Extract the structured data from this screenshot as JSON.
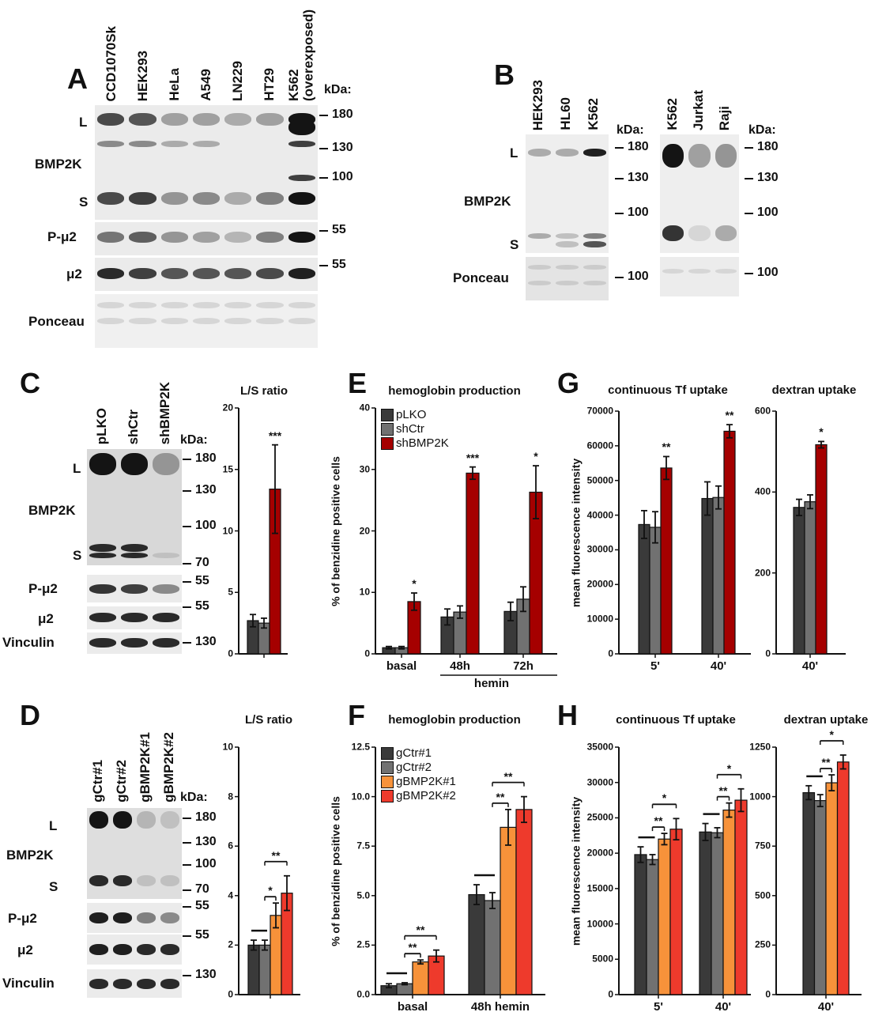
{
  "panels": {
    "A": "A",
    "B": "B",
    "C": "C",
    "D": "D",
    "E": "E",
    "F": "F",
    "G": "G",
    "H": "H"
  },
  "blotA": {
    "lanes": [
      "CCD1070Sk",
      "HEK293",
      "HeLa",
      "A549",
      "LN229",
      "HT29",
      "K562 (overexposed)"
    ],
    "rows": {
      "L": "L",
      "bmp2k": "BMP2K",
      "S": "S",
      "pmu2": "P-μ2",
      "mu2": "μ2",
      "ponceau": "Ponceau"
    },
    "kda_label": "kDa:",
    "markers": [
      "180",
      "130",
      "100",
      "55",
      "55"
    ]
  },
  "blotB": {
    "lanes_left": [
      "HEK293",
      "HL60",
      "K562"
    ],
    "lanes_right": [
      "K562",
      "Jurkat",
      "Raji"
    ],
    "rows": {
      "L": "L",
      "bmp2k": "BMP2K",
      "S": "S",
      "ponceau": "Ponceau"
    },
    "kda_label": "kDa:",
    "markers_left": [
      "180",
      "130",
      "100",
      "100"
    ],
    "markers_right": [
      "180",
      "130",
      "100",
      "100"
    ]
  },
  "blotC": {
    "lanes": [
      "pLKO",
      "shCtr",
      "shBMP2K"
    ],
    "rows": {
      "L": "L",
      "bmp2k": "BMP2K",
      "S": "S",
      "pmu2": "P-μ2",
      "mu2": "μ2",
      "vinculin": "Vinculin"
    },
    "kda_label": "kDa:",
    "markers": [
      "180",
      "130",
      "100",
      "70",
      "55",
      "55",
      "130"
    ]
  },
  "blotD": {
    "lanes": [
      "gCtr#1",
      "gCtr#2",
      "gBMP2K#1",
      "gBMP2K#2"
    ],
    "rows": {
      "L": "L",
      "bmp2k": "BMP2K",
      "S": "S",
      "pmu2": "P-μ2",
      "mu2": "μ2",
      "vinculin": "Vinculin"
    },
    "kda_label": "kDa:",
    "markers": [
      "180",
      "130",
      "100",
      "70",
      "55",
      "55",
      "130"
    ]
  },
  "colors": {
    "dark": "#3a3a3a",
    "gray": "#717171",
    "darkred": "#a50000",
    "orange": "#f7923a",
    "red": "#ee3a2c"
  },
  "chart_data": [
    {
      "id": "C",
      "type": "bar",
      "title": "L/S ratio",
      "ylabel": "",
      "ylim": [
        0,
        20
      ],
      "yticks": [
        "0",
        "5",
        "10",
        "15",
        "20"
      ],
      "categories": [
        ""
      ],
      "series": [
        {
          "values": [
            2.7
          ],
          "errors": [
            0.5
          ],
          "color": "#3a3a3a"
        },
        {
          "values": [
            2.5
          ],
          "errors": [
            0.4
          ],
          "color": "#717171"
        },
        {
          "values": [
            13.4
          ],
          "errors": [
            3.6
          ],
          "color": "#a50000"
        }
      ],
      "significance": [
        {
          "group": 0,
          "bar": 2,
          "label": "***"
        }
      ]
    },
    {
      "id": "E",
      "type": "bar",
      "title": "hemoglobin production",
      "ylabel": "% of benzidine positive cells",
      "ylim": [
        0,
        40
      ],
      "yticks": [
        "0",
        "10",
        "20",
        "30",
        "40"
      ],
      "categories": [
        "basal",
        "48h",
        "72h"
      ],
      "group_label": "hemin",
      "legend": "top-left",
      "series": [
        {
          "name": "pLKO",
          "values": [
            1.0,
            6.0,
            6.9
          ],
          "errors": [
            0.2,
            1.3,
            1.5
          ],
          "color": "#3a3a3a"
        },
        {
          "name": "shCtr",
          "values": [
            1.0,
            6.8,
            8.9
          ],
          "errors": [
            0.2,
            1.0,
            2.0
          ],
          "color": "#717171"
        },
        {
          "name": "shBMP2K",
          "values": [
            8.5,
            29.4,
            26.3
          ],
          "errors": [
            1.4,
            1.0,
            4.3
          ],
          "color": "#a50000"
        }
      ],
      "significance": [
        {
          "group": 0,
          "bar": 2,
          "label": "*"
        },
        {
          "group": 1,
          "bar": 2,
          "label": "***"
        },
        {
          "group": 2,
          "bar": 2,
          "label": "*"
        }
      ]
    },
    {
      "id": "G1",
      "type": "bar",
      "title": "continuous Tf uptake",
      "ylabel": "mean fluorescence intensity",
      "ylim": [
        0,
        70000
      ],
      "yticks": [
        "0",
        "10000",
        "20000",
        "30000",
        "40000",
        "50000",
        "60000",
        "70000"
      ],
      "categories": [
        "5'",
        "40'"
      ],
      "series": [
        {
          "values": [
            37300,
            44800
          ],
          "errors": [
            4000,
            4800
          ],
          "color": "#3a3a3a"
        },
        {
          "values": [
            36500,
            45100
          ],
          "errors": [
            4500,
            3300
          ],
          "color": "#717171"
        },
        {
          "values": [
            53600,
            64200
          ],
          "errors": [
            3300,
            1900
          ],
          "color": "#a50000"
        }
      ],
      "significance": [
        {
          "group": 0,
          "bar": 2,
          "label": "**"
        },
        {
          "group": 1,
          "bar": 2,
          "label": "**"
        }
      ]
    },
    {
      "id": "G2",
      "type": "bar",
      "title": "dextran uptake",
      "ylabel": "",
      "ylim": [
        0,
        600
      ],
      "yticks": [
        "0",
        "200",
        "400",
        "600"
      ],
      "categories": [
        "40'"
      ],
      "series": [
        {
          "values": [
            362
          ],
          "errors": [
            20
          ],
          "color": "#3a3a3a"
        },
        {
          "values": [
            376
          ],
          "errors": [
            17
          ],
          "color": "#717171"
        },
        {
          "values": [
            517
          ],
          "errors": [
            8
          ],
          "color": "#a50000"
        }
      ],
      "significance": [
        {
          "group": 0,
          "bar": 2,
          "label": "*"
        }
      ]
    },
    {
      "id": "D",
      "type": "bar",
      "title": "L/S ratio",
      "ylabel": "",
      "ylim": [
        0,
        10
      ],
      "yticks": [
        "0",
        "2",
        "4",
        "6",
        "8",
        "10"
      ],
      "categories": [
        ""
      ],
      "series": [
        {
          "values": [
            2.0
          ],
          "errors": [
            0.2
          ],
          "color": "#3a3a3a"
        },
        {
          "values": [
            2.0
          ],
          "errors": [
            0.2
          ],
          "color": "#717171"
        },
        {
          "values": [
            3.2
          ],
          "errors": [
            0.5
          ],
          "color": "#f7923a"
        },
        {
          "values": [
            4.1
          ],
          "errors": [
            0.7
          ],
          "color": "#ee3a2c"
        }
      ],
      "brackets": [
        {
          "group": 0,
          "from": 0,
          "to": 1,
          "label": ""
        },
        {
          "group": 0,
          "from": 1,
          "to": 2,
          "label": "*"
        },
        {
          "group": 0,
          "from": 1,
          "to": 3,
          "label": "**"
        }
      ]
    },
    {
      "id": "F",
      "type": "bar",
      "title": "hemoglobin production",
      "ylabel": "% of benzidine positive cells",
      "ylim": [
        0,
        12.5
      ],
      "yticks": [
        "0.0",
        "2.5",
        "5.0",
        "7.5",
        "10.0",
        "12.5"
      ],
      "categories": [
        "basal",
        "48h hemin"
      ],
      "legend": "top-left",
      "series": [
        {
          "name": "gCtr#1",
          "values": [
            0.45,
            5.05
          ],
          "errors": [
            0.1,
            0.5
          ],
          "color": "#3a3a3a"
        },
        {
          "name": "gCtr#2",
          "values": [
            0.55,
            4.75
          ],
          "errors": [
            0.05,
            0.4
          ],
          "color": "#717171"
        },
        {
          "name": "gBMP2K#1",
          "values": [
            1.65,
            8.45
          ],
          "errors": [
            0.1,
            0.9
          ],
          "color": "#f7923a"
        },
        {
          "name": "gBMP2K#2",
          "values": [
            1.95,
            9.35
          ],
          "errors": [
            0.3,
            0.65
          ],
          "color": "#ee3a2c"
        }
      ],
      "brackets": [
        {
          "group": 0,
          "from": 0,
          "to": 1,
          "label": ""
        },
        {
          "group": 0,
          "from": 1,
          "to": 2,
          "label": "**"
        },
        {
          "group": 0,
          "from": 1,
          "to": 3,
          "label": "**"
        },
        {
          "group": 1,
          "from": 0,
          "to": 1,
          "label": ""
        },
        {
          "group": 1,
          "from": 1,
          "to": 2,
          "label": "**"
        },
        {
          "group": 1,
          "from": 1,
          "to": 3,
          "label": "**"
        }
      ]
    },
    {
      "id": "H1",
      "type": "bar",
      "title": "continuous Tf uptake",
      "ylabel": "mean fluorescence intensity",
      "ylim": [
        0,
        35000
      ],
      "yticks": [
        "0",
        "5000",
        "10000",
        "15000",
        "20000",
        "25000",
        "30000",
        "35000"
      ],
      "categories": [
        "5'",
        "40'"
      ],
      "series": [
        {
          "values": [
            19800,
            23000
          ],
          "errors": [
            1100,
            1200
          ],
          "color": "#3a3a3a"
        },
        {
          "values": [
            19100,
            22900
          ],
          "errors": [
            700,
            700
          ],
          "color": "#717171"
        },
        {
          "values": [
            22000,
            26100
          ],
          "errors": [
            800,
            1000
          ],
          "color": "#f7923a"
        },
        {
          "values": [
            23400,
            27500
          ],
          "errors": [
            1500,
            1600
          ],
          "color": "#ee3a2c"
        }
      ],
      "brackets": [
        {
          "group": 0,
          "from": 0,
          "to": 1,
          "label": ""
        },
        {
          "group": 0,
          "from": 1,
          "to": 2,
          "label": "**"
        },
        {
          "group": 0,
          "from": 1,
          "to": 3,
          "label": "*"
        },
        {
          "group": 1,
          "from": 0,
          "to": 1,
          "label": ""
        },
        {
          "group": 1,
          "from": 1,
          "to": 2,
          "label": "**"
        },
        {
          "group": 1,
          "from": 1,
          "to": 3,
          "label": "*"
        }
      ]
    },
    {
      "id": "H2",
      "type": "bar",
      "title": "dextran uptake",
      "ylabel": "",
      "ylim": [
        0,
        1250
      ],
      "yticks": [
        "0",
        "250",
        "500",
        "750",
        "1000",
        "1250"
      ],
      "categories": [
        "40'"
      ],
      "series": [
        {
          "values": [
            1020
          ],
          "errors": [
            35
          ],
          "color": "#3a3a3a"
        },
        {
          "values": [
            980
          ],
          "errors": [
            30
          ],
          "color": "#717171"
        },
        {
          "values": [
            1070
          ],
          "errors": [
            40
          ],
          "color": "#f7923a"
        },
        {
          "values": [
            1175
          ],
          "errors": [
            35
          ],
          "color": "#ee3a2c"
        }
      ],
      "brackets": [
        {
          "group": 0,
          "from": 0,
          "to": 1,
          "label": ""
        },
        {
          "group": 0,
          "from": 1,
          "to": 2,
          "label": "**"
        },
        {
          "group": 0,
          "from": 1,
          "to": 3,
          "label": "*"
        }
      ]
    }
  ]
}
